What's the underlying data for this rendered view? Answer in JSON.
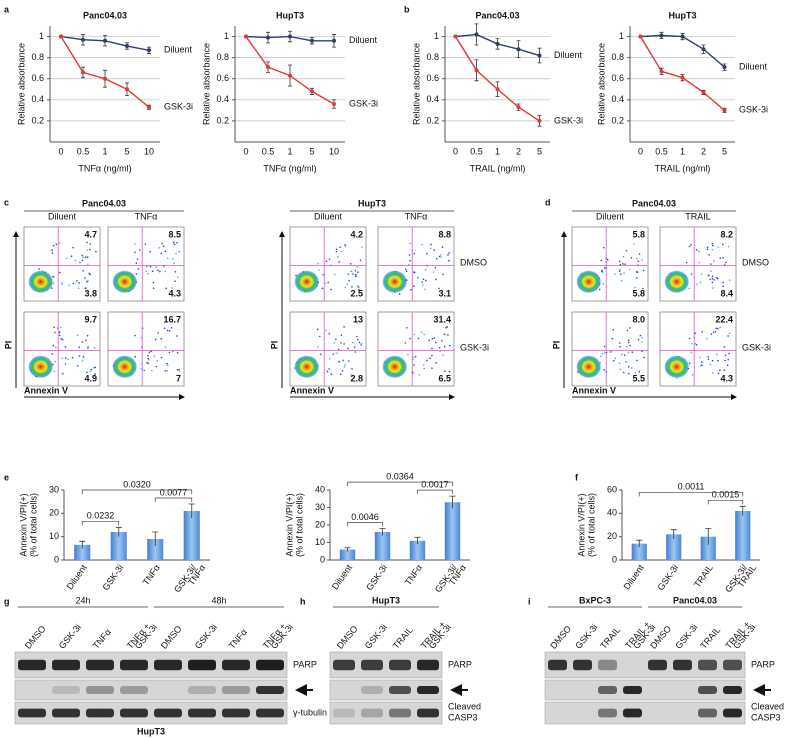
{
  "panel_letters": [
    "a",
    "b",
    "c",
    "d",
    "e",
    "f",
    "g",
    "h",
    "i"
  ],
  "chart_data": [
    {
      "type": "line",
      "title": "Panc04.03",
      "categories": [
        "0",
        "0.5",
        "1",
        "5",
        "10"
      ],
      "x_label": "TNFα (ng/ml)",
      "y_label": "Relative absorbance",
      "ylim": [
        0,
        1.1
      ],
      "yticks": [
        0.2,
        0.4,
        0.6,
        0.8,
        1
      ],
      "grid": true,
      "series": [
        {
          "name": "Diluent",
          "color": "#2c3e6b",
          "values": [
            1,
            0.97,
            0.96,
            0.91,
            0.87
          ],
          "errors": [
            0,
            0.05,
            0.05,
            0.03,
            0.03
          ]
        },
        {
          "name": "GSK-3i",
          "color": "#e03a30",
          "values": [
            1,
            0.66,
            0.6,
            0.5,
            0.33
          ],
          "errors": [
            0,
            0.05,
            0.08,
            0.06,
            0.02
          ]
        }
      ]
    },
    {
      "type": "line",
      "title": "HupT3",
      "categories": [
        "0",
        "0.5",
        "1",
        "5",
        "10"
      ],
      "x_label": "TNFα (ng/ml)",
      "y_label": "Relative absorbance",
      "ylim": [
        0,
        1.1
      ],
      "yticks": [
        0.2,
        0.4,
        0.6,
        0.8,
        1
      ],
      "grid": true,
      "series": [
        {
          "name": "Diluent",
          "color": "#2c3e6b",
          "values": [
            1,
            0.99,
            1.0,
            0.96,
            0.96
          ],
          "errors": [
            0,
            0.05,
            0.05,
            0.03,
            0.06
          ]
        },
        {
          "name": "GSK-3i",
          "color": "#e03a30",
          "values": [
            1,
            0.71,
            0.63,
            0.48,
            0.36
          ],
          "errors": [
            0,
            0.05,
            0.1,
            0.03,
            0.04
          ]
        }
      ]
    },
    {
      "type": "line",
      "title": "Panc04.03",
      "categories": [
        "0",
        "0.5",
        "1",
        "2",
        "5"
      ],
      "x_label": "TRAIL (ng/ml)",
      "y_label": "Relative absorbance",
      "ylim": [
        0,
        1.1
      ],
      "yticks": [
        0.2,
        0.4,
        0.6,
        0.8,
        1
      ],
      "grid": true,
      "series": [
        {
          "name": "Diluent",
          "color": "#2c3e6b",
          "values": [
            1,
            1.02,
            0.93,
            0.88,
            0.82
          ],
          "errors": [
            0,
            0.1,
            0.05,
            0.08,
            0.07
          ]
        },
        {
          "name": "GSK-3i",
          "color": "#e03a30",
          "values": [
            1,
            0.68,
            0.5,
            0.33,
            0.2
          ],
          "errors": [
            0,
            0.1,
            0.07,
            0.03,
            0.05
          ]
        }
      ]
    },
    {
      "type": "line",
      "title": "HupT3",
      "categories": [
        "0",
        "0.5",
        "1",
        "2",
        "5"
      ],
      "x_label": "TRAIL (ng/ml)",
      "y_label": "Relative absorbance",
      "ylim": [
        0,
        1.1
      ],
      "yticks": [
        0.2,
        0.4,
        0.6,
        0.8,
        1
      ],
      "grid": true,
      "series": [
        {
          "name": "Diluent",
          "color": "#2c3e6b",
          "values": [
            1,
            1.01,
            1.0,
            0.88,
            0.71
          ],
          "errors": [
            0,
            0.03,
            0.03,
            0.04,
            0.03
          ]
        },
        {
          "name": "GSK-3i",
          "color": "#e03a30",
          "values": [
            1,
            0.67,
            0.61,
            0.47,
            0.3
          ],
          "errors": [
            0,
            0.03,
            0.03,
            0.02,
            0.02
          ]
        }
      ]
    },
    {
      "type": "bar",
      "categories": [
        "Diluent",
        "GSK-3i",
        "TNFα",
        [
          "GSK-3i/",
          "TNFα"
        ]
      ],
      "y_label": [
        "Annexin V/PI(+)",
        "(% of total cells)"
      ],
      "values": [
        6.5,
        12,
        9,
        21
      ],
      "errors": [
        1.5,
        2,
        3,
        3
      ],
      "ylim": [
        0,
        30
      ],
      "yticks": [
        0,
        10,
        20,
        30
      ],
      "brackets": [
        {
          "pair": [
            "Diluent",
            "GSK-3i"
          ],
          "label": "0.0232"
        },
        {
          "pair": [
            "TNFα",
            [
              "GSK-3i/",
              "TNFα"
            ]
          ],
          "label": "0.0077"
        },
        {
          "pair": [
            "Diluent",
            [
              "GSK-3i/",
              "TNFα"
            ]
          ],
          "label": "0.0320"
        }
      ]
    },
    {
      "type": "bar",
      "categories": [
        "Diluent",
        "GSK-3i",
        "TNFα",
        [
          "GSK-3i/",
          "TNFα"
        ]
      ],
      "y_label": [
        "Annexin V/PI(+)",
        "(% of total cells)"
      ],
      "values": [
        6,
        16,
        11,
        33
      ],
      "errors": [
        1,
        2,
        2,
        3.5
      ],
      "ylim": [
        0,
        40
      ],
      "yticks": [
        0,
        10,
        20,
        30,
        40
      ],
      "brackets": [
        {
          "pair": [
            "Diluent",
            "GSK-3i"
          ],
          "label": "0.0046"
        },
        {
          "pair": [
            "TNFα",
            [
              "GSK-3i/",
              "TNFα"
            ]
          ],
          "label": "0.0017"
        },
        {
          "pair": [
            "Diluent",
            [
              "GSK-3i/",
              "TNFα"
            ]
          ],
          "label": "0.0364"
        }
      ]
    },
    {
      "type": "bar",
      "categories": [
        "Diluent",
        "GSK-3i",
        "TRAIL",
        [
          "GSK-3i/",
          "TRAIL"
        ]
      ],
      "y_label": [
        "Annexin V/PI(+)",
        "(% of total cells)"
      ],
      "values": [
        14,
        22,
        20,
        42
      ],
      "errors": [
        3,
        4,
        7,
        4
      ],
      "ylim": [
        0,
        60
      ],
      "yticks": [
        0,
        20,
        40,
        60
      ],
      "brackets": [
        {
          "pair": [
            "TRAIL",
            [
              "GSK-3i/",
              "TRAIL"
            ]
          ],
          "label": "0.0015"
        },
        {
          "pair": [
            "Diluent",
            [
              "GSK-3i/",
              "TRAIL"
            ]
          ],
          "label": "0.0011"
        }
      ]
    }
  ],
  "flow_panels": [
    {
      "title": "Panc04.03",
      "columns": [
        "Diluent",
        "TNFα"
      ],
      "y_label": "PI",
      "x_label": "Annexin V",
      "quadrants": [
        [
          [
            "4.7",
            "3.8"
          ],
          [
            "8.5",
            "4.3"
          ]
        ],
        [
          [
            "9.7",
            "4.9"
          ],
          [
            "16.7",
            "7"
          ]
        ]
      ]
    },
    {
      "title": "HupT3",
      "columns": [
        "Diluent",
        "TNFα"
      ],
      "rows": [
        "DMSO",
        "GSK-3i"
      ],
      "y_label": "PI",
      "x_label": "Annexin V",
      "quadrants": [
        [
          [
            "4.2",
            "2.5"
          ],
          [
            "8.8",
            "3.1"
          ]
        ],
        [
          [
            "13",
            "2.8"
          ],
          [
            "31.4",
            "6.5"
          ]
        ]
      ]
    },
    {
      "title": "Panc04.03",
      "columns": [
        "Diluent",
        "TRAIL"
      ],
      "rows": [
        "DMSO",
        "GSK-3i"
      ],
      "y_label": "PI",
      "x_label": "Annexin V",
      "quadrants": [
        [
          [
            "5.8",
            "5.8"
          ],
          [
            "8.2",
            "8.4"
          ]
        ],
        [
          [
            "8.0",
            "5.5"
          ],
          [
            "22.4",
            "4.3"
          ]
        ]
      ]
    }
  ],
  "blots": [
    {
      "groups": [
        {
          "label": "24h",
          "lanes": [
            "DMSO",
            "GSK-3i",
            "TNFα",
            [
              "TNFα +",
              "GSK-3i"
            ]
          ]
        },
        {
          "label": "48h",
          "lanes": [
            "DMSO",
            "GSK-3i",
            "TNFα",
            [
              "TNFα +",
              "GSK-3i"
            ]
          ]
        }
      ],
      "row_labels": [
        "PARP",
        "γ-tubulin"
      ],
      "footer": "HupT3"
    },
    {
      "groups": [
        {
          "label": "HupT3",
          "lanes": [
            "DMSO",
            "GSK-3i",
            "TRAIL",
            [
              "TRAIL +",
              "GSK-3i"
            ]
          ]
        }
      ],
      "row_labels": [
        "PARP",
        [
          "Cleaved",
          "CASP3"
        ]
      ]
    },
    {
      "groups": [
        {
          "label": "BxPC-3",
          "lanes": [
            "DMSO",
            "GSK-3i",
            "TRAIL",
            [
              "TRAIL +",
              "GSK-3i"
            ]
          ]
        },
        {
          "label": "Panc04.03",
          "lanes": [
            "DMSO",
            "GSK-3i",
            "TRAIL",
            [
              "TRAIL +",
              "GSK-3i"
            ]
          ]
        }
      ],
      "row_labels": [
        "PARP",
        [
          "Cleaved",
          "CASP3"
        ]
      ]
    }
  ]
}
